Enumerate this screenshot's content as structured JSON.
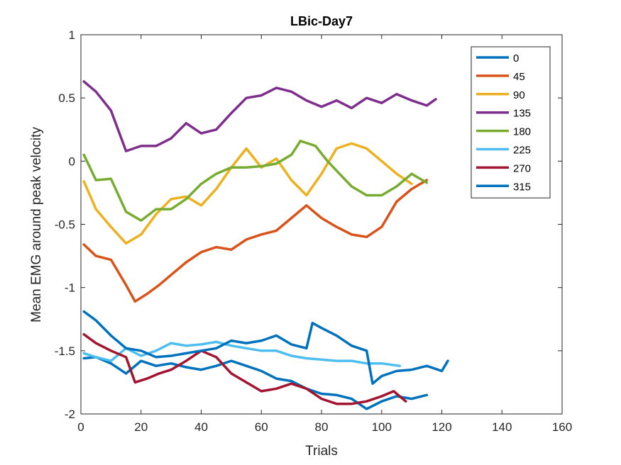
{
  "chart_data": {
    "type": "line",
    "title": "LBic-Day7",
    "xlabel": "Trials",
    "ylabel": "Mean EMG around peak velocity",
    "xlim": [
      0,
      160
    ],
    "ylim": [
      -2,
      1
    ],
    "xticks": [
      0,
      20,
      40,
      60,
      80,
      100,
      120,
      140,
      160
    ],
    "yticks": [
      -2,
      -1.5,
      -1,
      -0.5,
      0,
      0.5,
      1
    ],
    "grid": false,
    "legend_position": "top-right",
    "series": [
      {
        "name": "0",
        "color": "#0072BD",
        "x": [
          1,
          5,
          10,
          15,
          20,
          25,
          30,
          35,
          40,
          45,
          50,
          55,
          60,
          65,
          70,
          75,
          80,
          85,
          90,
          95,
          100,
          105,
          110,
          115
        ],
        "y": [
          -1.56,
          -1.55,
          -1.6,
          -1.68,
          -1.58,
          -1.62,
          -1.6,
          -1.63,
          -1.65,
          -1.62,
          -1.58,
          -1.62,
          -1.66,
          -1.72,
          -1.74,
          -1.8,
          -1.84,
          -1.85,
          -1.88,
          -1.96,
          -1.9,
          -1.86,
          -1.88,
          -1.85
        ]
      },
      {
        "name": "45",
        "color": "#D95319",
        "x": [
          1,
          5,
          10,
          15,
          18,
          22,
          26,
          30,
          35,
          40,
          45,
          50,
          55,
          60,
          65,
          70,
          75,
          80,
          85,
          90,
          95,
          100,
          105,
          110,
          115
        ],
        "y": [
          -0.66,
          -0.75,
          -0.78,
          -0.98,
          -1.11,
          -1.05,
          -0.98,
          -0.9,
          -0.8,
          -0.72,
          -0.68,
          -0.7,
          -0.62,
          -0.58,
          -0.55,
          -0.45,
          -0.35,
          -0.45,
          -0.52,
          -0.58,
          -0.6,
          -0.52,
          -0.32,
          -0.22,
          -0.15
        ]
      },
      {
        "name": "90",
        "color": "#EDB120",
        "x": [
          1,
          5,
          10,
          15,
          20,
          25,
          30,
          35,
          40,
          45,
          50,
          55,
          60,
          65,
          70,
          75,
          80,
          85,
          90,
          95,
          100,
          105,
          110
        ],
        "y": [
          -0.16,
          -0.38,
          -0.52,
          -0.65,
          -0.58,
          -0.42,
          -0.3,
          -0.28,
          -0.35,
          -0.22,
          -0.05,
          0.1,
          -0.05,
          0.02,
          -0.15,
          -0.27,
          -0.1,
          0.1,
          0.14,
          0.1,
          0.0,
          -0.1,
          -0.18
        ]
      },
      {
        "name": "135",
        "color": "#7E2F8E",
        "x": [
          1,
          5,
          10,
          15,
          20,
          25,
          30,
          35,
          40,
          45,
          50,
          55,
          60,
          65,
          70,
          75,
          80,
          85,
          90,
          95,
          100,
          105,
          110,
          115,
          118
        ],
        "y": [
          0.63,
          0.55,
          0.4,
          0.08,
          0.12,
          0.12,
          0.18,
          0.3,
          0.22,
          0.25,
          0.38,
          0.5,
          0.52,
          0.58,
          0.55,
          0.48,
          0.43,
          0.48,
          0.42,
          0.5,
          0.46,
          0.53,
          0.48,
          0.44,
          0.49
        ]
      },
      {
        "name": "180",
        "color": "#77AC30",
        "x": [
          1,
          5,
          10,
          15,
          20,
          25,
          30,
          35,
          40,
          45,
          50,
          55,
          60,
          65,
          70,
          73,
          78,
          82,
          86,
          90,
          95,
          100,
          105,
          110,
          115
        ],
        "y": [
          0.05,
          -0.15,
          -0.14,
          -0.4,
          -0.47,
          -0.38,
          -0.38,
          -0.3,
          -0.18,
          -0.1,
          -0.05,
          -0.05,
          -0.04,
          -0.02,
          0.05,
          0.16,
          0.12,
          0.0,
          -0.1,
          -0.2,
          -0.27,
          -0.27,
          -0.2,
          -0.1,
          -0.17
        ]
      },
      {
        "name": "225",
        "color": "#4DBEEE",
        "x": [
          1,
          5,
          10,
          15,
          20,
          25,
          30,
          35,
          40,
          45,
          50,
          55,
          60,
          65,
          70,
          75,
          80,
          85,
          90,
          95,
          100,
          106
        ],
        "y": [
          -1.52,
          -1.55,
          -1.58,
          -1.48,
          -1.54,
          -1.5,
          -1.44,
          -1.46,
          -1.45,
          -1.43,
          -1.46,
          -1.48,
          -1.5,
          -1.5,
          -1.54,
          -1.56,
          -1.57,
          -1.58,
          -1.58,
          -1.6,
          -1.6,
          -1.62
        ]
      },
      {
        "name": "270",
        "color": "#A2142F",
        "x": [
          1,
          5,
          10,
          15,
          18,
          22,
          26,
          30,
          35,
          40,
          45,
          50,
          55,
          60,
          65,
          70,
          75,
          80,
          85,
          90,
          95,
          100,
          104,
          108
        ],
        "y": [
          -1.37,
          -1.44,
          -1.5,
          -1.55,
          -1.75,
          -1.72,
          -1.68,
          -1.65,
          -1.58,
          -1.5,
          -1.55,
          -1.68,
          -1.75,
          -1.82,
          -1.8,
          -1.76,
          -1.8,
          -1.88,
          -1.92,
          -1.92,
          -1.9,
          -1.86,
          -1.82,
          -1.9
        ]
      },
      {
        "name": "315",
        "color": "#0072BD",
        "x": [
          1,
          5,
          10,
          15,
          20,
          25,
          30,
          35,
          40,
          45,
          50,
          55,
          60,
          65,
          70,
          75,
          77,
          80,
          85,
          90,
          95,
          97,
          100,
          105,
          110,
          115,
          120,
          122
        ],
        "y": [
          -1.19,
          -1.26,
          -1.38,
          -1.48,
          -1.5,
          -1.55,
          -1.54,
          -1.52,
          -1.5,
          -1.48,
          -1.42,
          -1.44,
          -1.42,
          -1.38,
          -1.45,
          -1.48,
          -1.28,
          -1.32,
          -1.38,
          -1.46,
          -1.5,
          -1.76,
          -1.7,
          -1.66,
          -1.65,
          -1.62,
          -1.66,
          -1.58
        ]
      }
    ]
  }
}
